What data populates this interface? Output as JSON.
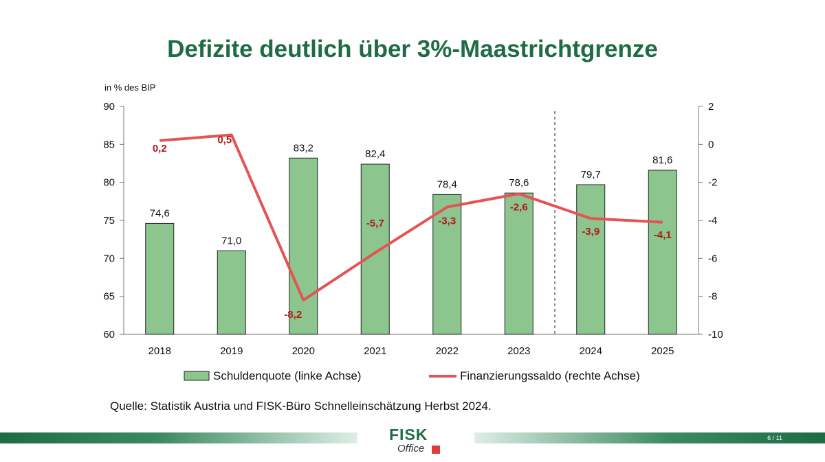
{
  "slide": {
    "title": "Defizite deutlich über 3%-Maastrichtgrenze",
    "source": "Quelle: Statistik Austria und FISK-Büro Schnelleinschätzung Herbst 2024.",
    "page": "6 / 11",
    "logo": {
      "main": "FISK",
      "sub": "Office"
    }
  },
  "chart_data": {
    "type": "bar",
    "title": "Defizite deutlich über 3%-Maastrichtgrenze",
    "categories": [
      "2018",
      "2019",
      "2020",
      "2021",
      "2022",
      "2023",
      "2024",
      "2025"
    ],
    "y_unit_label": "in % des BIP",
    "left_axis": {
      "min": 60,
      "max": 90,
      "ticks": [
        60,
        65,
        70,
        75,
        80,
        85,
        90
      ]
    },
    "right_axis": {
      "min": -10,
      "max": 2,
      "ticks": [
        -10,
        -8,
        -6,
        -4,
        -2,
        0,
        2
      ]
    },
    "forecast_divider_after": "2023",
    "series": [
      {
        "name": "Schuldenquote (linke Achse)",
        "type": "bar",
        "axis": "left",
        "color": "#8cc68e",
        "values": [
          74.6,
          71.0,
          83.2,
          82.4,
          78.4,
          78.6,
          79.7,
          81.6
        ],
        "labels": [
          "74,6",
          "71,0",
          "83,2",
          "82,4",
          "78,4",
          "78,6",
          "79,7",
          "81,6"
        ]
      },
      {
        "name": "Finanzierungssaldo (rechte Achse)",
        "type": "line",
        "axis": "right",
        "color": "#e45454",
        "label_color": "#b01818",
        "values": [
          0.2,
          0.5,
          -8.2,
          -5.7,
          -3.3,
          -2.6,
          -3.9,
          -4.1
        ],
        "labels": [
          "0,2",
          "0,5",
          "-8,2",
          "-5,7",
          "-3,3",
          "-2,6",
          "-3,9",
          "-4,1"
        ]
      }
    ]
  }
}
